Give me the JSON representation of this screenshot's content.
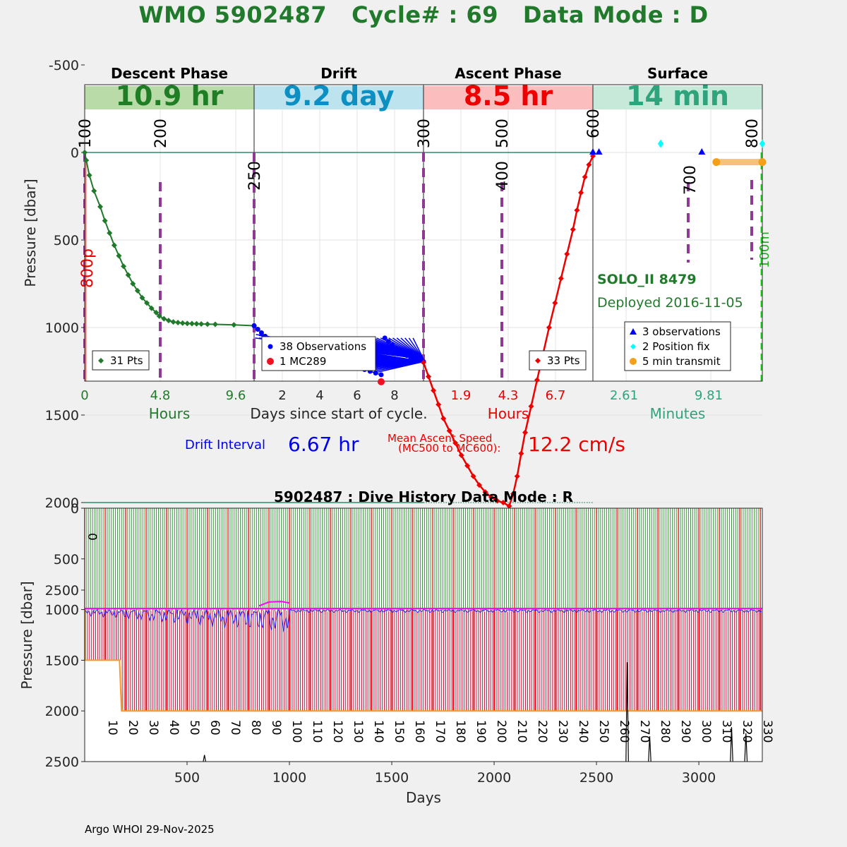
{
  "header": {
    "title": "WMO 5902487   Cycle# : 69   Data Mode : D",
    "colors": {
      "title": "#217a2b"
    }
  },
  "top_panel": {
    "phases": [
      {
        "name": "Descent Phase",
        "duration": "10.9 hr",
        "band_color": "#b9dba8",
        "text_color": "#1e7d25"
      },
      {
        "name": "Drift",
        "duration": "9.2 day",
        "band_color": "#bde3ef",
        "text_color": "#0e8fc1"
      },
      {
        "name": "Ascent Phase",
        "duration": "8.5 hr",
        "band_color": "#fbbdbd",
        "text_color": "#ee0000"
      },
      {
        "name": "Surface",
        "duration": "14 min",
        "band_color": "#c7e9da",
        "text_color": "#2ea37c"
      }
    ],
    "ylabel": "Pressure [dbar]",
    "y_ticks": [
      "-500",
      "0",
      "500",
      "1000",
      "1500",
      "2000",
      "2500"
    ],
    "x_axis": {
      "descent": {
        "ticks": [
          "0",
          "4.8",
          "9.6"
        ],
        "label": "Hours",
        "color": "#217a2b"
      },
      "drift": {
        "ticks": [
          "2",
          "4",
          "6",
          "8"
        ],
        "label": "Days since start of cycle.",
        "color": "#262626"
      },
      "ascent": {
        "ticks": [
          "1.9",
          "4.3",
          "6.7"
        ],
        "label": "Hours",
        "color": "#ee0000"
      },
      "surface": {
        "ticks": [
          "2.61",
          "9.81"
        ],
        "label": "Minutes",
        "color": "#2ea37c"
      }
    },
    "event_markers": [
      "100",
      "200",
      "250",
      "300",
      "400",
      "500",
      "600",
      "700",
      "800"
    ],
    "side_labels": {
      "descent": "800p",
      "surface": "100m"
    },
    "legends": {
      "descent": [
        "31 Pts"
      ],
      "drift": [
        "38 Observations",
        "1 MC289"
      ],
      "ascent": [
        "33 Pts"
      ],
      "surface": [
        "3 observations",
        "2 Position fix",
        "5 min transmit"
      ]
    },
    "float_info": {
      "name": "SOLO_II 8479",
      "deployed": "Deployed 2016-11-05"
    }
  },
  "stats": {
    "drift_label": "Drift Interval",
    "drift_value": "6.67 hr",
    "ascent_label_line1": "Mean Ascent Speed",
    "ascent_label_line2": "(MC500 to MC600):",
    "ascent_value": "12.2 cm/s"
  },
  "bottom_panel": {
    "title": "5902487 : Dive History      Data Mode : R",
    "ylabel": "Pressure [dbar]",
    "xlabel": "Days",
    "y_ticks": [
      "0",
      "500",
      "1000",
      "1500",
      "2000",
      "2500"
    ],
    "x_ticks": [
      "500",
      "1000",
      "1500",
      "2000",
      "2500",
      "3000"
    ],
    "cycle_labels": [
      "0",
      "10",
      "20",
      "30",
      "40",
      "50",
      "60",
      "70",
      "80",
      "90",
      "100",
      "110",
      "120",
      "130",
      "140",
      "150",
      "160",
      "170",
      "180",
      "190",
      "200",
      "210",
      "220",
      "230",
      "240",
      "250",
      "260",
      "270",
      "280",
      "290",
      "300",
      "310",
      "320",
      "330"
    ]
  },
  "footer": {
    "credit": "Argo WHOI 29-Nov-2025"
  },
  "chart_data": [
    {
      "type": "line",
      "title": "WMO 5902487   Cycle# : 69   Data Mode : D",
      "ylabel": "Pressure [dbar]",
      "ylim": [
        -750,
        2600
      ],
      "reference_lines": [
        0,
        2000
      ],
      "series": [
        {
          "name": "31 Pts",
          "panel": "descent",
          "x_unit": "hours",
          "x": [
            0,
            0.1,
            0.3,
            0.6,
            1.0,
            1.3,
            1.6,
            1.9,
            2.2,
            2.5,
            2.8,
            3.1,
            3.4,
            3.7,
            4.0,
            4.3,
            4.6,
            4.8,
            5.1,
            5.4,
            5.7,
            6.0,
            6.3,
            6.6,
            6.9,
            7.2,
            7.5,
            7.9,
            8.4,
            9.6,
            10.9
          ],
          "y": [
            0,
            45,
            130,
            220,
            310,
            390,
            460,
            530,
            590,
            650,
            700,
            750,
            790,
            830,
            860,
            890,
            915,
            935,
            950,
            960,
            968,
            972,
            975,
            977,
            978,
            979,
            980,
            981,
            982,
            985,
            990
          ]
        },
        {
          "name": "38 Observations",
          "panel": "drift",
          "x_unit": "days",
          "x": [
            0,
            0.2,
            0.4,
            0.6,
            0.9,
            1.2,
            1.5,
            1.8,
            2.1,
            2.4,
            2.7,
            3.0,
            3.3,
            3.6,
            3.9,
            4.2,
            4.5,
            4.8,
            5.1,
            5.4,
            5.7,
            6.0,
            6.3,
            6.6,
            6.9,
            7.1,
            7.3,
            7.5,
            7.7,
            7.9,
            8.1,
            8.3,
            8.5,
            8.7,
            8.9,
            9.0,
            9.1,
            9.2
          ],
          "y": [
            990,
            1010,
            1030,
            1050,
            1070,
            1080,
            1090,
            1100,
            1110,
            1120,
            1130,
            1140,
            1150,
            1160,
            1170,
            1180,
            1190,
            1200,
            1210,
            1220,
            1230,
            1240,
            1250,
            1260,
            1270,
            1060,
            1080,
            1100,
            1120,
            1140,
            1150,
            1160,
            1170,
            1175,
            1180,
            1185,
            1190,
            1195
          ]
        },
        {
          "name": "1 MC289",
          "panel": "drift",
          "x_unit": "days",
          "x": [
            6.9
          ],
          "y": [
            1310
          ]
        },
        {
          "name": "33 Pts",
          "panel": "ascent",
          "x_unit": "hours",
          "x": [
            0,
            0.25,
            0.5,
            0.75,
            1.0,
            1.3,
            1.6,
            1.9,
            2.2,
            2.5,
            2.8,
            3.1,
            3.4,
            3.7,
            4.0,
            4.3,
            4.5,
            4.7,
            4.9,
            5.1,
            5.4,
            5.7,
            6.0,
            6.3,
            6.6,
            6.9,
            7.2,
            7.5,
            7.7,
            7.9,
            8.1,
            8.3,
            8.5
          ],
          "y": [
            1200,
            1280,
            1360,
            1440,
            1520,
            1590,
            1660,
            1730,
            1790,
            1850,
            1900,
            1940,
            1970,
            1990,
            2000,
            2020,
            1950,
            1850,
            1720,
            1600,
            1450,
            1300,
            1150,
            1000,
            860,
            720,
            580,
            440,
            330,
            230,
            140,
            70,
            20
          ]
        },
        {
          "name": "3 observations",
          "panel": "surface",
          "x_unit": "minutes",
          "x": [
            0,
            0.5,
            9.0
          ],
          "y": [
            0,
            0,
            0
          ]
        },
        {
          "name": "2 Position fix",
          "panel": "surface",
          "x_unit": "minutes",
          "x": [
            5.6,
            14.0
          ],
          "y": [
            -50,
            -50
          ]
        },
        {
          "name": "5 min transmit",
          "panel": "surface",
          "x_unit": "minutes",
          "x": [
            10.2,
            14.0
          ],
          "y": [
            55,
            55
          ]
        }
      ]
    },
    {
      "type": "bar",
      "title": "5902487 : Dive History      Data Mode : R",
      "xlabel": "Days",
      "ylabel": "Pressure [dbar]",
      "xlim": [
        0,
        3310
      ],
      "ylim": [
        0,
        2500
      ],
      "cycle_interval_days": 10,
      "cycles": 331,
      "series": [
        {
          "name": "drift depth",
          "values_note": "drift pressure near 1000 dbar, deeper excursions to about 1300 dbar in early cycles"
        },
        {
          "name": "profile depth",
          "x": [
            0,
            170,
            180,
            3310
          ],
          "y": [
            1500,
            1500,
            2000,
            2000
          ]
        }
      ]
    }
  ]
}
